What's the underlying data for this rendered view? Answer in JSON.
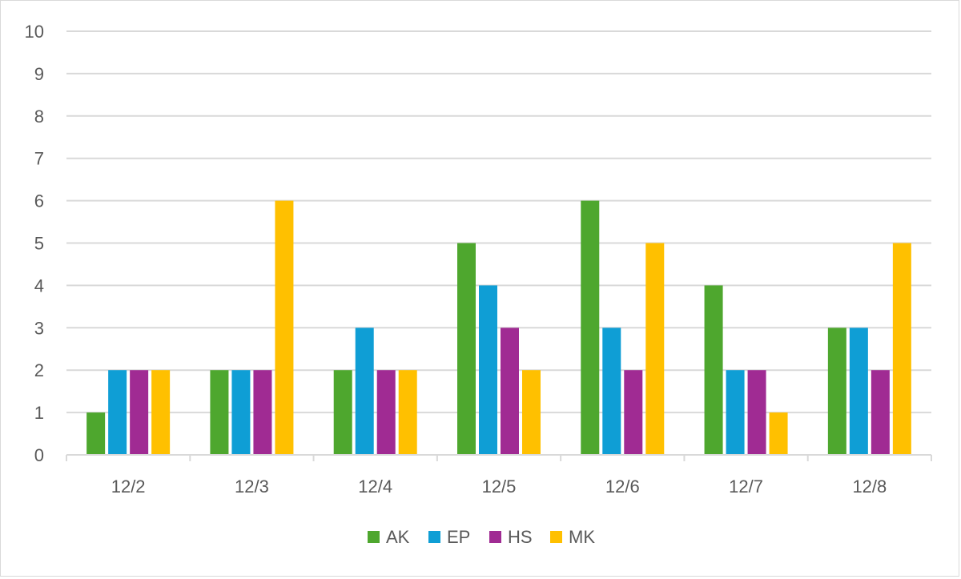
{
  "chart_data": {
    "type": "bar",
    "categories": [
      "12/2",
      "12/3",
      "12/4",
      "12/5",
      "12/6",
      "12/7",
      "12/8"
    ],
    "series": [
      {
        "name": "AK",
        "color": "#4ea72e",
        "values": [
          1,
          2,
          2,
          5,
          6,
          4,
          3
        ]
      },
      {
        "name": "EP",
        "color": "#0f9ed5",
        "values": [
          2,
          2,
          3,
          4,
          3,
          2,
          3
        ]
      },
      {
        "name": "HS",
        "color": "#a02b93",
        "values": [
          2,
          2,
          2,
          3,
          2,
          2,
          2
        ]
      },
      {
        "name": "MK",
        "color": "#ffc000",
        "values": [
          2,
          6,
          2,
          2,
          5,
          1,
          5
        ]
      }
    ],
    "ylim": [
      0,
      10
    ],
    "yticks": [
      0,
      1,
      2,
      3,
      4,
      5,
      6,
      7,
      8,
      9,
      10
    ],
    "grid": true,
    "legend": "bottom"
  },
  "colors": {
    "gridline": "#d9d9d9",
    "axis": "#d9d9d9",
    "text": "#595959"
  }
}
